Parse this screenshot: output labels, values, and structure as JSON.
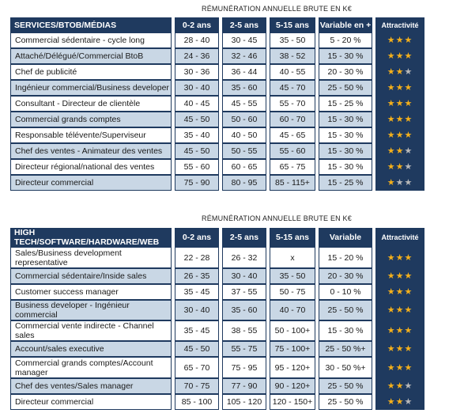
{
  "table1": {
    "caption": "RÉMUNÉRATION ANNUELLE BRUTE EN K€",
    "headers": [
      "SERVICES/BTOB/MÉDIAS",
      "0-2 ans",
      "2-5 ans",
      "5-15 ans",
      "Variable en +",
      "Attractivité"
    ],
    "rows": [
      {
        "name": "Commercial sédentaire - cycle long",
        "c1": "28 - 40",
        "c2": "30 - 45",
        "c3": "35 - 50",
        "var": "5 - 20 %",
        "stars": 3
      },
      {
        "name": "Attaché/Délégué/Commercial BtoB",
        "c1": "24 - 36",
        "c2": "32 - 46",
        "c3": "38 - 52",
        "var": "15 - 30 %",
        "stars": 3
      },
      {
        "name": "Chef de publicité",
        "c1": "30 - 36",
        "c2": "36 - 44",
        "c3": "40 - 55",
        "var": "20 - 30 %",
        "stars": 2
      },
      {
        "name": "Ingénieur commercial/Business developer",
        "c1": "30 - 40",
        "c2": "35 - 60",
        "c3": "45 - 70",
        "var": "25 - 50 %",
        "stars": 3
      },
      {
        "name": "Consultant - Directeur de clientèle",
        "c1": "40 - 45",
        "c2": "45 - 55",
        "c3": "55 - 70",
        "var": "15 - 25 %",
        "stars": 3
      },
      {
        "name": "Commercial grands comptes",
        "c1": "45 - 50",
        "c2": "50 - 60",
        "c3": "60 - 70",
        "var": "15 - 30 %",
        "stars": 3
      },
      {
        "name": "Responsable télévente/Superviseur",
        "c1": "35 - 40",
        "c2": "40 - 50",
        "c3": "45 - 65",
        "var": "15 - 30 %",
        "stars": 3
      },
      {
        "name": "Chef des ventes - Animateur des ventes",
        "c1": "45 - 50",
        "c2": "50 - 55",
        "c3": "55 - 60",
        "var": "15 - 30 %",
        "stars": 2
      },
      {
        "name": "Directeur régional/national des ventes",
        "c1": "55 - 60",
        "c2": "60 - 65",
        "c3": "65 - 75",
        "var": "15 - 30 %",
        "stars": 2
      },
      {
        "name": "Directeur commercial",
        "c1": "75 - 90",
        "c2": "80 - 95",
        "c3": "85 - 115+",
        "var": "15 - 25 %",
        "stars": 1
      }
    ]
  },
  "table2": {
    "caption": "RÉMUNÉRATION ANNUELLE BRUTE EN K€",
    "headers": [
      "HIGH TECH/SOFTWARE/HARDWARE/WEB",
      "0-2 ans",
      "2-5 ans",
      "5-15 ans",
      "Variable",
      "Attractivité"
    ],
    "rows": [
      {
        "name": "Sales/Business development representative",
        "c1": "22 - 28",
        "c2": "26 - 32",
        "c3": "x",
        "var": "15 - 20 %",
        "stars": 3
      },
      {
        "name": "Commercial sédentaire/Inside sales",
        "c1": "26 - 35",
        "c2": "30 - 40",
        "c3": "35 - 50",
        "var": "20 - 30 %",
        "stars": 3
      },
      {
        "name": "Customer success manager",
        "c1": "35 - 45",
        "c2": "37 - 55",
        "c3": "50 - 75",
        "var": "0 - 10 %",
        "stars": 3
      },
      {
        "name": "Business developer - Ingénieur commercial",
        "c1": "30 - 40",
        "c2": "35 - 60",
        "c3": "40 - 70",
        "var": "25 - 50 %",
        "stars": 3
      },
      {
        "name": "Commercial vente indirecte - Channel sales",
        "c1": "35 - 45",
        "c2": "38 - 55",
        "c3": "50 - 100+",
        "var": "15 - 30 %",
        "stars": 3
      },
      {
        "name": "Account/sales executive",
        "c1": "45 - 50",
        "c2": "55 - 75",
        "c3": "75 - 100+",
        "var": "25 - 50 %+",
        "stars": 3
      },
      {
        "name": "Commercial grands comptes/Account manager",
        "c1": "65 - 70",
        "c2": "75 - 95",
        "c3": "95 - 120+",
        "var": "30 - 50 %+",
        "stars": 3
      },
      {
        "name": "Chef des ventes/Sales manager",
        "c1": "70 - 75",
        "c2": "77 - 90",
        "c3": "90 - 120+",
        "var": "25 - 50 %",
        "stars": 2
      },
      {
        "name": "Directeur commercial",
        "c1": "85 - 100",
        "c2": "105 - 120",
        "c3": "120 - 150+",
        "var": "25 - 50 %",
        "stars": 2
      }
    ]
  }
}
